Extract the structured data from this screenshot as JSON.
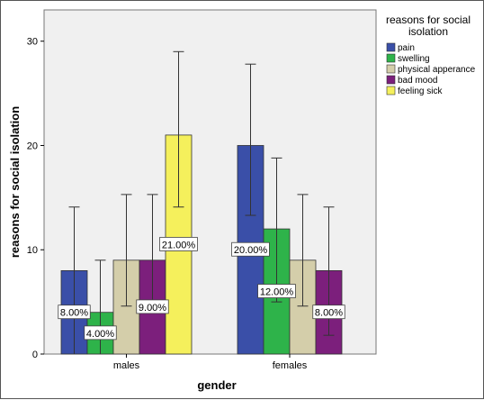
{
  "chart_data": {
    "type": "bar",
    "categories": [
      "males",
      "females"
    ],
    "series": [
      {
        "name": "pain",
        "color": "#3a4fa8",
        "values": [
          8,
          20
        ],
        "labels": [
          "8.00%",
          "20.00%"
        ],
        "error": [
          [
            0,
            14.1
          ],
          [
            13.3,
            27.8
          ]
        ]
      },
      {
        "name": "swelling",
        "color": "#2eb34a",
        "values": [
          4,
          12
        ],
        "labels": [
          "4.00%",
          "12.00%"
        ],
        "error": [
          [
            0,
            9.0
          ],
          [
            5.0,
            18.8
          ]
        ]
      },
      {
        "name": "physical apperance",
        "color": "#d4ceaa",
        "values": [
          9,
          9
        ],
        "labels": [
          "",
          ""
        ],
        "error": [
          [
            4.6,
            15.3
          ],
          [
            4.6,
            15.3
          ]
        ]
      },
      {
        "name": "bad mood",
        "color": "#7c1f7c",
        "values": [
          9,
          8
        ],
        "labels": [
          "9.00%",
          "8.00%"
        ],
        "error": [
          [
            4.6,
            15.3
          ],
          [
            1.8,
            14.1
          ]
        ]
      },
      {
        "name": "feeling sick",
        "color": "#f5f05c",
        "values": [
          21,
          0
        ],
        "labels": [
          "21.00%",
          ""
        ],
        "error": [
          [
            14.1,
            29.0
          ],
          null
        ]
      }
    ],
    "xlabel": "gender",
    "ylabel": "reasons for social isolation",
    "ylim": [
      0,
      33
    ],
    "yticks": [
      "0",
      "10",
      "20",
      "30"
    ],
    "legend": {
      "title": "reasons for social isolation",
      "title_lines": [
        "reasons for social",
        "isolation"
      ],
      "position": "right"
    },
    "plot_background": "#f0f0f0"
  }
}
